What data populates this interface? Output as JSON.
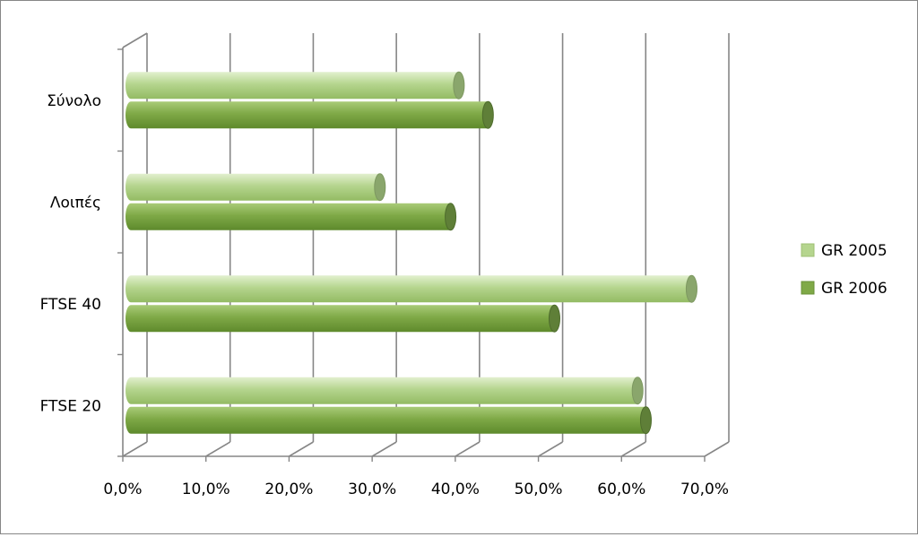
{
  "chart_data": {
    "type": "bar",
    "orientation": "horizontal",
    "style": "3d-cylinder",
    "categories": [
      "Σύνολο",
      "Λοιπές",
      "FTSE 40",
      "FTSE 20"
    ],
    "series": [
      {
        "name": "GR 2005",
        "values": [
          40.0,
          30.5,
          68.0,
          61.5
        ],
        "color": "#b5d58e"
      },
      {
        "name": "GR 2006",
        "values": [
          43.5,
          39.0,
          51.5,
          62.5
        ],
        "color": "#7fa947"
      }
    ],
    "x_ticks": [
      "0,0%",
      "10,0%",
      "20,0%",
      "30,0%",
      "40,0%",
      "50,0%",
      "60,0%",
      "70,0%"
    ],
    "xlim": [
      0,
      70
    ],
    "grid": true,
    "legend_position": "right"
  }
}
